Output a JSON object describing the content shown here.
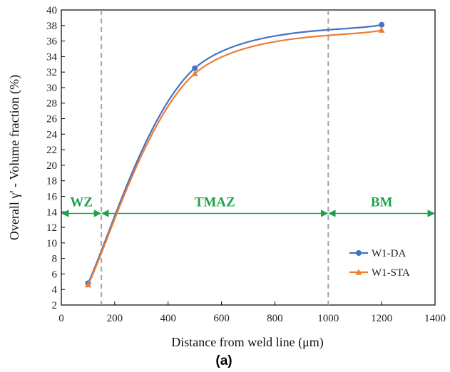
{
  "chart_data": {
    "type": "line",
    "title": "",
    "xlabel": "Distance from weld line (μm)",
    "ylabel": "Overall γ' - Volume fraction (%)",
    "xlim": [
      0,
      1400
    ],
    "ylim": [
      2,
      40
    ],
    "xticks": [
      0,
      200,
      400,
      600,
      800,
      1000,
      1200,
      1400
    ],
    "yticks": [
      2,
      4,
      6,
      8,
      10,
      12,
      14,
      16,
      18,
      20,
      22,
      24,
      26,
      28,
      30,
      32,
      34,
      36,
      38,
      40
    ],
    "grid": false,
    "legend": "right",
    "series": [
      {
        "name": "W1-DA",
        "color": "#4472C4",
        "marker": "circle",
        "x": [
          100,
          500,
          1200
        ],
        "y": [
          4.8,
          32.5,
          38.1
        ]
      },
      {
        "name": "W1-STA",
        "color": "#ED7D31",
        "marker": "triangle",
        "x": [
          100,
          500,
          1200
        ],
        "y": [
          4.6,
          31.8,
          37.4
        ]
      }
    ],
    "region_boundaries": [
      150,
      1000
    ],
    "regions": [
      {
        "label": "WZ",
        "from": 0,
        "to": 150
      },
      {
        "label": "TMAZ",
        "from": 150,
        "to": 1000
      },
      {
        "label": "BM",
        "from": 1000,
        "to": 1400
      }
    ],
    "region_arrow_y": 13.8,
    "caption": "(a)"
  },
  "colors": {
    "region_arrows": "#1aa34a",
    "boundary_lines": "#a6a6a6"
  }
}
